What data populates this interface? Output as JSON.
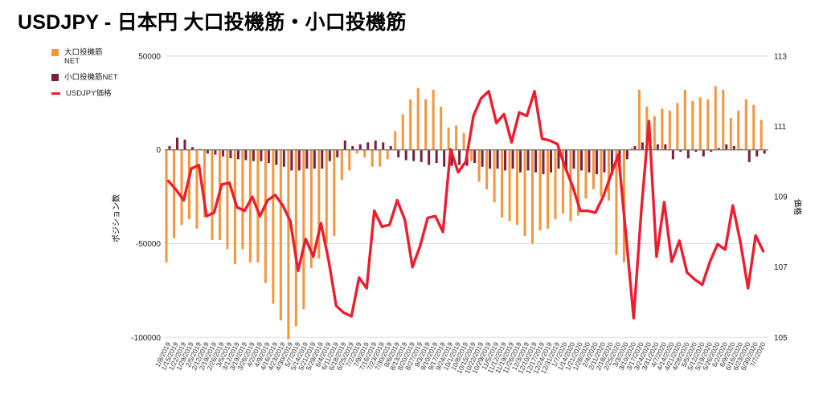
{
  "title": "USDJPY - 日本円 大口投機筋・小口投機筋",
  "legend": {
    "large_spec_line1": "大口投機筋",
    "large_spec_line2": "NET",
    "small_spec": "小口投機筋NET",
    "price": "USDJPY価格"
  },
  "colors": {
    "large_spec": "#F6953C",
    "small_spec": "#77204040",
    "small_spec_solid": "#772040",
    "price_line": "#EE1D2E",
    "grid": "#DCDCDC",
    "zero_line": "#757575",
    "tick_text": "#1A1A1A",
    "date_text": "#333333"
  },
  "chart_data": {
    "type": "bar+line combo",
    "title": "USDJPY - 日本円 大口投機筋・小口投機筋",
    "left_axis": {
      "label": "ポジション数",
      "ticks": [
        50000,
        0,
        -50000,
        -100000
      ],
      "range": [
        -100000,
        50000
      ]
    },
    "right_axis": {
      "label": "価格",
      "ticks": [
        113,
        111,
        109,
        107,
        105
      ],
      "range": [
        105,
        113
      ]
    },
    "legend_position": "top-left",
    "grid": "horizontal",
    "categories": [
      "1/8/2019",
      "1/15/2019",
      "1/22/2019",
      "1/29/2019",
      "2/5/2019",
      "2/12/2019",
      "2/19/2019",
      "2/26/2019",
      "3/5/2019",
      "3/12/2019",
      "3/19/2019",
      "3/26/2019",
      "4/2/2019",
      "4/9/2019",
      "4/16/2019",
      "4/23/2019",
      "4/30/2019",
      "5/7/2019",
      "5/14/2019",
      "5/21/2019",
      "5/28/2019",
      "6/4/2019",
      "6/11/2019",
      "6/18/2019",
      "6/25/2019",
      "7/2/2019",
      "7/9/2019",
      "7/16/2019",
      "7/23/2019",
      "7/30/2019",
      "8/6/2019",
      "8/13/2019",
      "8/20/2019",
      "8/27/2019",
      "9/3/2019",
      "9/10/2019",
      "9/17/2019",
      "9/24/2019",
      "10/1/2019",
      "10/8/2019",
      "10/15/2019",
      "10/22/2019",
      "10/29/2019",
      "11/5/2019",
      "11/12/2019",
      "11/19/2019",
      "11/26/2019",
      "12/3/2019",
      "12/10/2019",
      "12/17/2019",
      "12/24/2019",
      "12/31/2019",
      "1/7/2020",
      "1/14/2020",
      "1/21/2020",
      "1/28/2020",
      "2/4/2020",
      "2/11/2020",
      "2/18/2020",
      "2/25/2020",
      "3/3/2020",
      "3/10/2020",
      "3/17/2020",
      "3/24/2020",
      "3/31/2020",
      "4/7/2020",
      "4/14/2020",
      "4/21/2020",
      "4/28/2020",
      "5/5/2020",
      "5/12/2020",
      "5/19/2020",
      "5/26/2020",
      "6/2/2020",
      "6/9/2020",
      "6/16/2020",
      "6/23/2020",
      "6/30/2020",
      "7/7/2020"
    ],
    "series": [
      {
        "name": "大口投機筋NET",
        "type": "bar",
        "axis": "left",
        "values": [
          -60000,
          -47000,
          -40000,
          -37000,
          -42000,
          -36000,
          -48000,
          -48000,
          -53000,
          -61000,
          -53000,
          -60000,
          -60000,
          -71000,
          -82000,
          -91000,
          -101000,
          -94000,
          -85000,
          -63000,
          -58000,
          -50000,
          -46000,
          -16000,
          -11000,
          -2000,
          -4000,
          -9000,
          -9000,
          -5000,
          10000,
          19000,
          27000,
          33000,
          27000,
          32000,
          23000,
          12000,
          13000,
          9000,
          -6000,
          -17000,
          -21000,
          -28000,
          -36000,
          -38000,
          -40000,
          -46000,
          -50000,
          -43000,
          -42000,
          -37000,
          -34000,
          -38000,
          -35000,
          -26000,
          -21000,
          -25000,
          -27000,
          -56000,
          -60000,
          1000,
          32000,
          23000,
          18000,
          22000,
          21000,
          25000,
          32000,
          26000,
          28000,
          27000,
          34000,
          32000,
          17000,
          21000,
          27000,
          24000,
          16000
        ]
      },
      {
        "name": "小口投機筋NET",
        "type": "bar",
        "axis": "left",
        "values": [
          2000,
          6500,
          5500,
          1500,
          500,
          -2000,
          -2500,
          -3500,
          -4500,
          -5000,
          -5500,
          -6000,
          -6000,
          -7000,
          -8000,
          -9000,
          -11000,
          -11000,
          -10000,
          -10000,
          -10000,
          -6000,
          -4000,
          5000,
          2000,
          3000,
          4000,
          5000,
          4000,
          2000,
          -4000,
          -5500,
          -6000,
          -6500,
          -8000,
          -7000,
          -9000,
          -8500,
          -8000,
          -8500,
          -7000,
          -9000,
          -10000,
          -10000,
          -11000,
          -10000,
          -12000,
          -11000,
          -12000,
          -13000,
          -12000,
          -10000,
          -11000,
          -10000,
          -11000,
          -12000,
          -13000,
          -12000,
          -13000,
          -8000,
          -5000,
          2000,
          4000,
          6000,
          3000,
          3000,
          -5000,
          -1000,
          -4500,
          -1000,
          -3500,
          -1000,
          1000,
          3000,
          2000,
          500,
          -6500,
          -3500,
          -2000
        ]
      },
      {
        "name": "USDJPY価格",
        "type": "line",
        "axis": "right",
        "values": [
          109.45,
          109.2,
          108.9,
          109.8,
          109.9,
          108.45,
          108.55,
          109.35,
          109.4,
          108.7,
          108.6,
          109.0,
          108.45,
          108.9,
          109.05,
          108.75,
          108.3,
          106.9,
          107.8,
          107.3,
          108.25,
          107.2,
          105.9,
          105.7,
          105.6,
          106.7,
          106.4,
          108.6,
          108.15,
          108.2,
          108.9,
          108.35,
          107.0,
          107.6,
          108.4,
          108.45,
          108.0,
          110.35,
          109.7,
          110.0,
          111.3,
          111.8,
          112.0,
          111.1,
          111.35,
          110.55,
          111.4,
          111.3,
          112.0,
          110.65,
          110.6,
          110.5,
          109.85,
          109.3,
          108.6,
          108.6,
          108.55,
          109.0,
          109.6,
          110.2,
          107.9,
          105.55,
          108.6,
          111.15,
          107.3,
          108.85,
          107.15,
          107.75,
          106.85,
          106.65,
          106.5,
          107.15,
          107.65,
          107.5,
          108.75,
          107.7,
          106.4,
          107.9,
          107.45
        ]
      }
    ]
  }
}
